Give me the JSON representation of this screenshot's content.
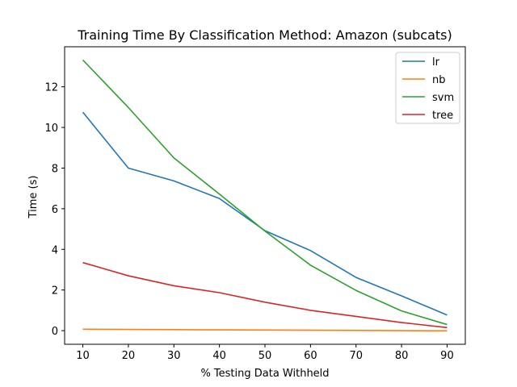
{
  "chart_data": {
    "type": "line",
    "title": "Training Time By Classification Method: Amazon (subcats)",
    "xlabel": "% Testing Data Withheld",
    "ylabel": "Time (s)",
    "x": [
      10,
      20,
      30,
      40,
      50,
      60,
      70,
      80,
      90
    ],
    "xticks": [
      10,
      20,
      30,
      40,
      50,
      60,
      70,
      80,
      90
    ],
    "yticks": [
      0,
      2,
      4,
      6,
      8,
      10,
      12
    ],
    "xlim": [
      6,
      94
    ],
    "ylim": [
      -0.67,
      13.97
    ],
    "grid": false,
    "legend_position": "top-right",
    "series": [
      {
        "name": "lr",
        "color": "#1f77b4",
        "values": [
          10.75,
          8.0,
          7.37,
          6.5,
          4.92,
          3.94,
          2.62,
          1.71,
          0.77
        ]
      },
      {
        "name": "nb",
        "color": "#ff7f0e",
        "values": [
          0.07,
          0.06,
          0.05,
          0.04,
          0.03,
          0.02,
          0.01,
          0.0,
          -0.01
        ]
      },
      {
        "name": "svm",
        "color": "#2ca02c",
        "values": [
          13.32,
          10.98,
          8.5,
          6.72,
          4.9,
          3.22,
          1.98,
          0.97,
          0.3
        ]
      },
      {
        "name": "tree",
        "color": "#d62728",
        "values": [
          3.35,
          2.7,
          2.21,
          1.87,
          1.4,
          1.0,
          0.7,
          0.4,
          0.15
        ]
      }
    ]
  }
}
